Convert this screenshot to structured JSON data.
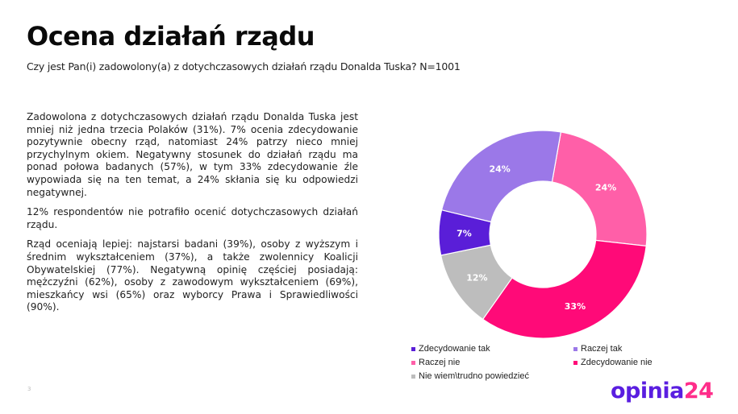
{
  "header": {
    "title": "Ocena działań rządu",
    "subtitle": "Czy jest Pan(i) zadowolony(a) z dotychczasowych działań rządu Donalda Tuska? N=1001"
  },
  "body": {
    "paragraphs": [
      "Zadowolona z dotychczasowych działań rządu Donalda Tuska jest mniej niż jedna trzecia Polaków (31%). 7% ocenia zdecydowanie pozytywnie obecny rząd, natomiast 24% patrzy nieco mniej przychylnym okiem. Negatywny stosunek do działań rządu ma ponad połowa badanych (57%), w tym 33% zdecydowanie źle wypowiada się na ten temat, a 24% skłania się ku odpowiedzi negatywnej.",
      "12% respondentów nie potrafiło ocenić dotychczasowych działań rządu.",
      "Rząd oceniają lepiej: najstarsi badani (39%), osoby z wyższym i średnim wykształceniem (37%), a także zwolennicy Koalicji Obywatelskiej (77%). Negatywną opinię częściej posiadają: mężczyźni (62%), osoby z zawodowym wykształceniem (69%), mieszkańcy wsi (65%) oraz wyborcy Prawa i Sprawiedliwości (90%)."
    ]
  },
  "chart_data": {
    "type": "pie",
    "donut": true,
    "title": "",
    "start_angle_deg": 10,
    "order": "clockwise",
    "slices": [
      {
        "label": "Raczej nie",
        "value": 24,
        "display": "24%",
        "color": "#ff5fa8"
      },
      {
        "label": "Zdecydowanie nie",
        "value": 33,
        "display": "33%",
        "color": "#ff0a78"
      },
      {
        "label": "Nie wiem\\trudno powiedzieć",
        "value": 12,
        "display": "12%",
        "color": "#bdbdbd"
      },
      {
        "label": "Zdecydowanie tak",
        "value": 7,
        "display": "7%",
        "color": "#5a1ed8"
      },
      {
        "label": "Raczej tak",
        "value": 24,
        "display": "24%",
        "color": "#9b78e8"
      }
    ],
    "legend": {
      "position": "bottom",
      "entries": [
        {
          "label": "Zdecydowanie tak",
          "color": "#5a1ed8"
        },
        {
          "label": "Raczej tak",
          "color": "#9b78e8"
        },
        {
          "label": "Raczej nie",
          "color": "#ff5fa8"
        },
        {
          "label": "Zdecydowanie nie",
          "color": "#ff0a78"
        },
        {
          "label": "Nie wiem\\trudno powiedzieć",
          "color": "#bdbdbd"
        }
      ]
    }
  },
  "footer": {
    "page_number": "3",
    "logo_part1": "opinia",
    "logo_part2": "24"
  }
}
